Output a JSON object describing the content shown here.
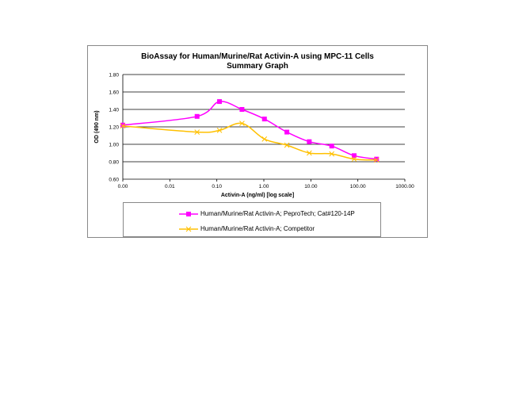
{
  "chart_data": {
    "type": "line",
    "title": "BioAssay for Human/Murine/Rat Activin-A using MPC-11 Cells",
    "subtitle": "Summary Graph",
    "xlabel": "Activin-A (ng/ml) [log scale]",
    "ylabel": "OD (490 nm)",
    "xscale": "log",
    "xlim": [
      0.001,
      1000
    ],
    "ylim": [
      0.6,
      1.8
    ],
    "xticks": [
      "0.00",
      "0.01",
      "0.10",
      "1.00",
      "10.00",
      "100.00",
      "1000.00"
    ],
    "yticks": [
      "0.60",
      "0.80",
      "1.00",
      "1.20",
      "1.40",
      "1.60",
      "1.80"
    ],
    "grid": "horizontal",
    "legend_position": "bottom",
    "x": [
      0.001,
      0.038,
      0.114,
      0.343,
      1.03,
      3.09,
      9.26,
      27.8,
      83.3,
      250
    ],
    "series": [
      {
        "name": "Human/Murine/Rat Activin-A; PeproTech; Cat#120-14P",
        "color": "#ff00ff",
        "marker": "square",
        "values": [
          1.22,
          1.32,
          1.49,
          1.4,
          1.29,
          1.14,
          1.03,
          0.98,
          0.87,
          0.83
        ]
      },
      {
        "name": "Human/Murine/Rat Activin-A; Competitor",
        "color": "#ffc000",
        "marker": "x",
        "values": [
          1.21,
          1.14,
          1.16,
          1.24,
          1.06,
          0.99,
          0.9,
          0.89,
          0.83,
          0.82
        ]
      }
    ]
  }
}
